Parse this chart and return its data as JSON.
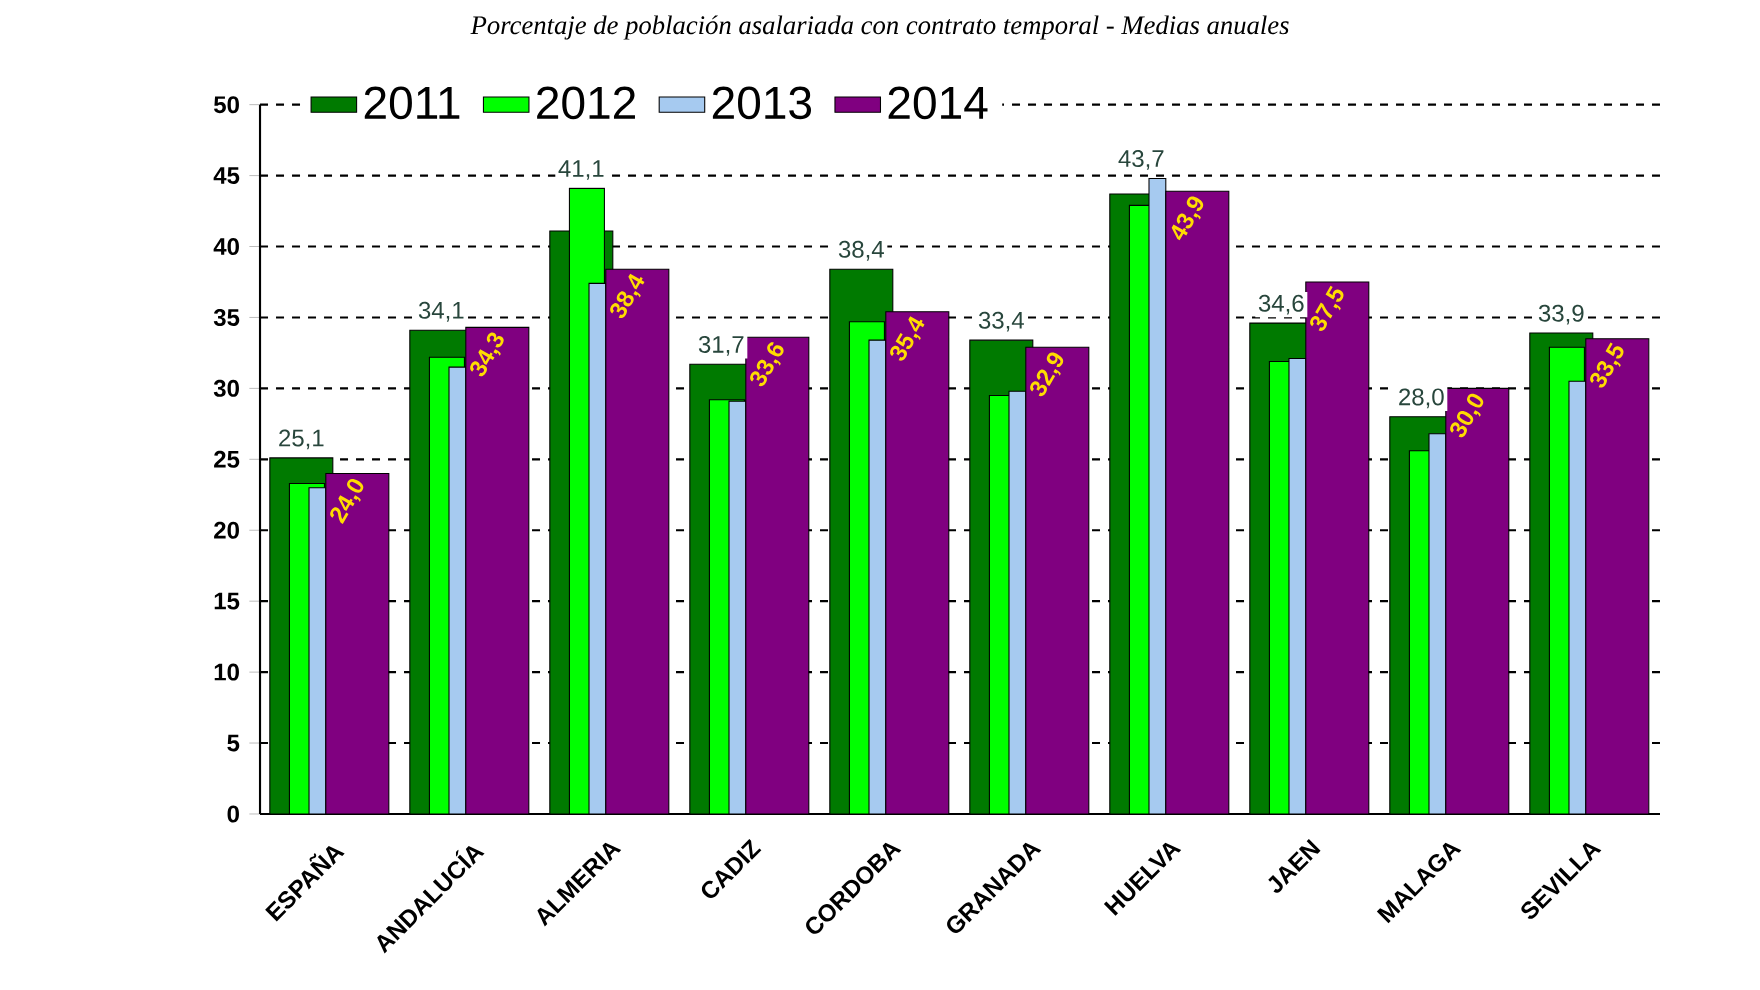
{
  "chart_data": {
    "type": "bar",
    "title": "Porcentaje de población asalariada con contrato temporal - Medias anuales",
    "categories": [
      "ESPAÑA",
      "ANDALUCÍA",
      "ALMERIA",
      "CADIZ",
      "CORDOBA",
      "GRANADA",
      "HUELVA",
      "JAEN",
      "MALAGA",
      "SEVILLA"
    ],
    "series": [
      {
        "name": "2011",
        "color": "#007a00",
        "values": [
          25.1,
          34.1,
          41.1,
          31.7,
          38.4,
          33.4,
          43.7,
          34.6,
          28.0,
          33.9
        ],
        "value_labels": [
          "25,1",
          "34,1",
          "41,1",
          "31,7",
          "38,4",
          "33,4",
          "43,7",
          "34,6",
          "28,0",
          "33,9"
        ]
      },
      {
        "name": "2012",
        "color": "#00ff00",
        "values": [
          23.3,
          32.2,
          44.1,
          29.2,
          34.7,
          29.5,
          42.9,
          31.9,
          25.6,
          32.9
        ]
      },
      {
        "name": "2013",
        "color": "#a6caf0",
        "values": [
          23.0,
          31.5,
          37.4,
          29.1,
          33.4,
          29.8,
          44.8,
          32.1,
          26.8,
          30.5
        ]
      },
      {
        "name": "2014",
        "color": "#800080",
        "values": [
          24.0,
          34.3,
          38.4,
          33.6,
          35.4,
          32.9,
          43.9,
          37.5,
          30.0,
          33.5
        ],
        "value_labels": [
          "24,0",
          "34,3",
          "38,4",
          "33,6",
          "35,4",
          "32,9",
          "43,9",
          "37,5",
          "30,0",
          "33,5"
        ]
      }
    ],
    "ylim": [
      0,
      50
    ],
    "yticks": [
      0,
      5,
      10,
      15,
      20,
      25,
      30,
      35,
      40,
      45,
      50
    ],
    "grid": "y",
    "legend": "top"
  }
}
